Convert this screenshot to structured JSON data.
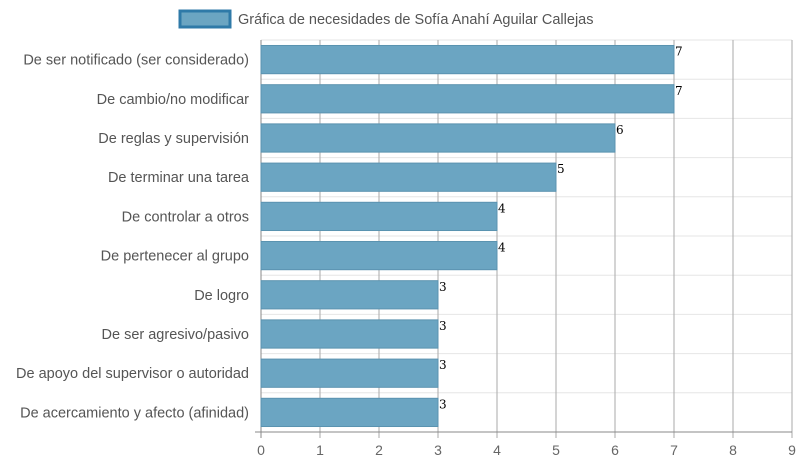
{
  "chart_data": {
    "type": "bar",
    "orientation": "horizontal",
    "categories": [
      "De ser notificado (ser considerado)",
      "De cambio/no modificar",
      "De reglas y supervisión",
      "De terminar una tarea",
      "De controlar a otros",
      "De pertenecer al grupo",
      "De logro",
      "De ser agresivo/pasivo",
      "De apoyo del supervisor o autoridad",
      "De acercamiento y afecto (afinidad)"
    ],
    "series": [
      {
        "name": "Gráfica de necesidades de Sofía Anahí Aguilar Callejas",
        "values": [
          7,
          7,
          6,
          5,
          4,
          4,
          3,
          3,
          3,
          3
        ]
      }
    ],
    "xlim": [
      0,
      9
    ],
    "ticks": [
      "0",
      "1",
      "2",
      "3",
      "4",
      "5",
      "6",
      "7",
      "8",
      "9"
    ],
    "data_labels": true,
    "grid": true,
    "legend_position": "top",
    "colors": {
      "bar_fill": "#6ba5c2",
      "bar_stroke": "#5b93b0",
      "legend_fill": "#6ba5c2",
      "legend_stroke": "#2f7aa8",
      "grid": "#e6e6e6",
      "axis": "#888888"
    }
  }
}
